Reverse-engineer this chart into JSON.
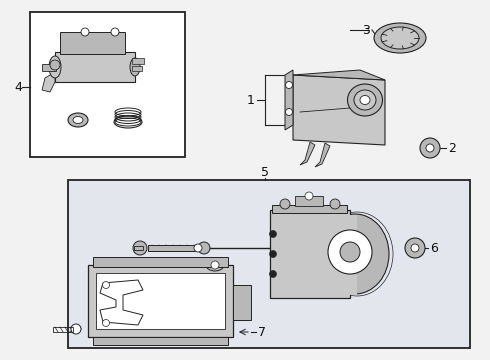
{
  "bg": "#f2f2f2",
  "box1_fc": "#e8e8e8",
  "box2_fc": "#e4e6ee",
  "part_gray": "#c8c8c8",
  "part_dark": "#a8a8a8",
  "part_mid": "#b8b8b8",
  "line_color": "#222222",
  "fig_w": 4.9,
  "fig_h": 3.6,
  "dpi": 100
}
